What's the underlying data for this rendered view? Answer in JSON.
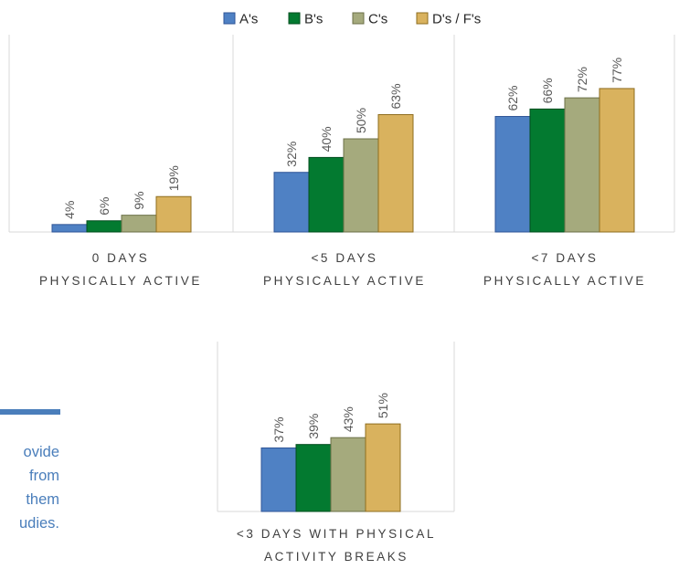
{
  "colors": {
    "A": "#4f81c4",
    "B": "#037a30",
    "C": "#a5aa7d",
    "D": "#d9b25e",
    "accent": "#4a7ebb"
  },
  "side_text": {
    "lines": [
      "ovide",
      "from",
      "them",
      "udies."
    ]
  },
  "chart_data": {
    "type": "bar",
    "legend": {
      "placement": "top",
      "entries": [
        "A's",
        "B's",
        "C's",
        "D's / F's"
      ]
    },
    "series_names": [
      "A's",
      "B's",
      "C's",
      "D's / F's"
    ],
    "grid": false,
    "ylim": [
      0,
      100
    ],
    "panels": [
      {
        "category_lines": [
          "0 DAYS",
          "PHYSICALLY ACTIVE"
        ],
        "values": [
          4,
          6,
          9,
          19
        ],
        "labels": [
          "4%",
          "6%",
          "9%",
          "19%"
        ]
      },
      {
        "category_lines": [
          "<5 DAYS",
          "PHYSICALLY ACTIVE"
        ],
        "values": [
          32,
          40,
          50,
          63
        ],
        "labels": [
          "32%",
          "40%",
          "50%",
          "63%"
        ]
      },
      {
        "category_lines": [
          "<7 DAYS",
          "PHYSICALLY ACTIVE"
        ],
        "values": [
          62,
          66,
          72,
          77
        ],
        "labels": [
          "62%",
          "66%",
          "72%",
          "77%"
        ]
      },
      {
        "category_lines": [
          "<3 DAYS WITH PHYSICAL",
          "ACTIVITY BREAKS"
        ],
        "values": [
          37,
          39,
          43,
          51
        ],
        "labels": [
          "37%",
          "39%",
          "43%",
          "51%"
        ]
      }
    ]
  }
}
